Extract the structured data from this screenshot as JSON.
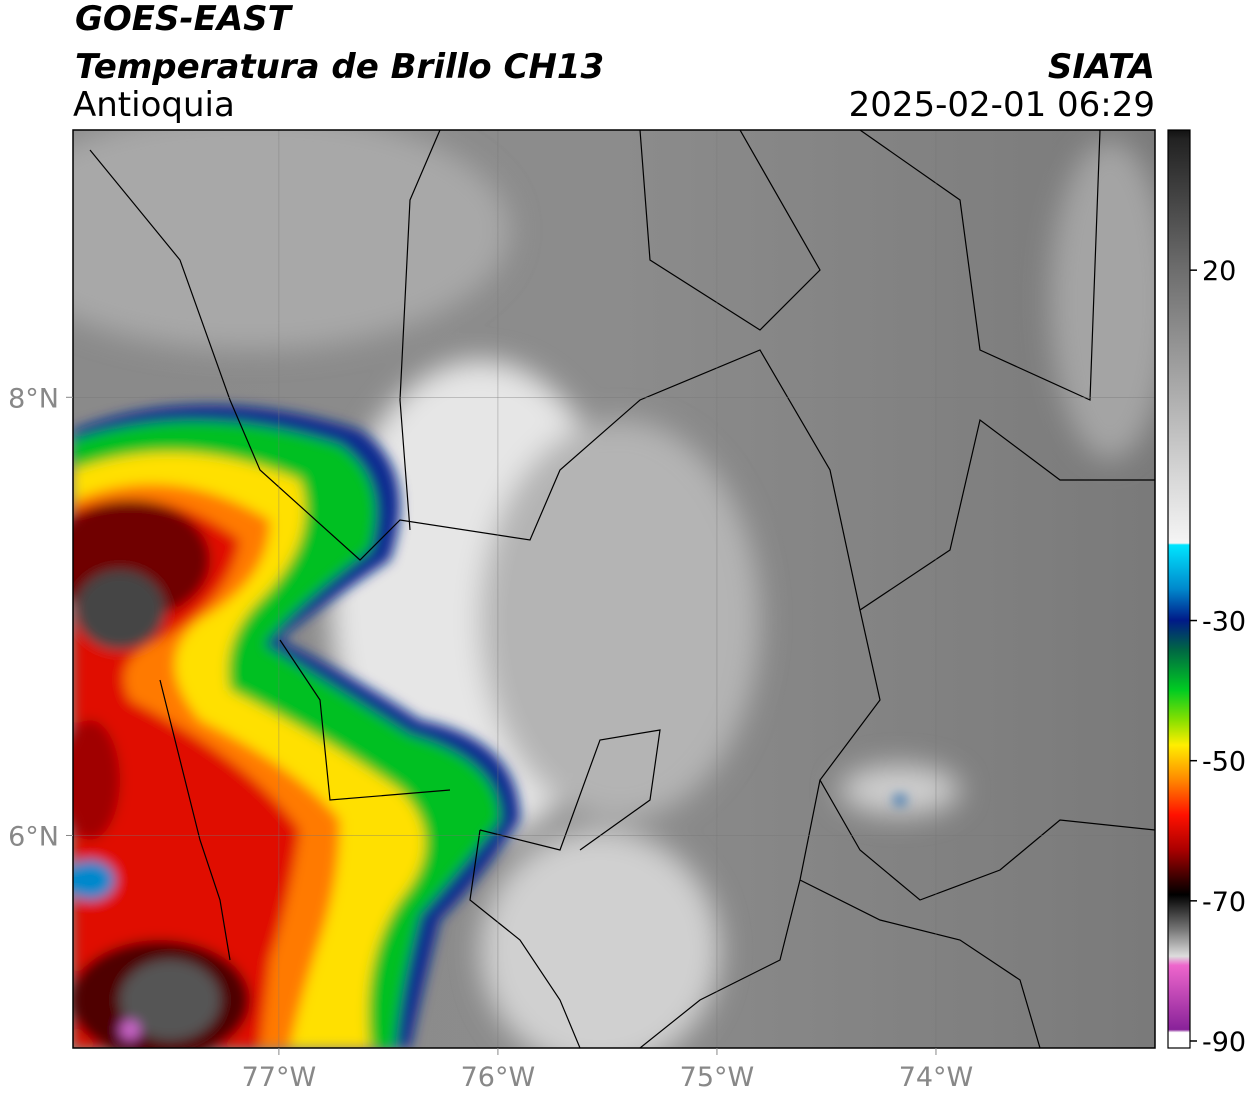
{
  "chart_data": {
    "type": "map",
    "title": "GOES-EAST",
    "subtitle": "Temperatura de Brillo CH13",
    "region": "Antioquia",
    "source": "SIATA",
    "timestamp": "2025-02-01 06:29",
    "xlim": [
      -77.94,
      -73.0
    ],
    "ylim": [
      5.03,
      9.22
    ],
    "xticks": [
      {
        "value": -77,
        "label": "77°W"
      },
      {
        "value": -76,
        "label": "76°W"
      },
      {
        "value": -75,
        "label": "75°W"
      },
      {
        "value": -74,
        "label": "74°W"
      }
    ],
    "yticks": [
      {
        "value": 6,
        "label": "6°N"
      },
      {
        "value": 8,
        "label": "8°N"
      }
    ],
    "grid": true,
    "colorbar": {
      "lim": [
        -91,
        40
      ],
      "ticks": [
        -90,
        -70,
        -50,
        -30,
        20
      ]
    }
  }
}
